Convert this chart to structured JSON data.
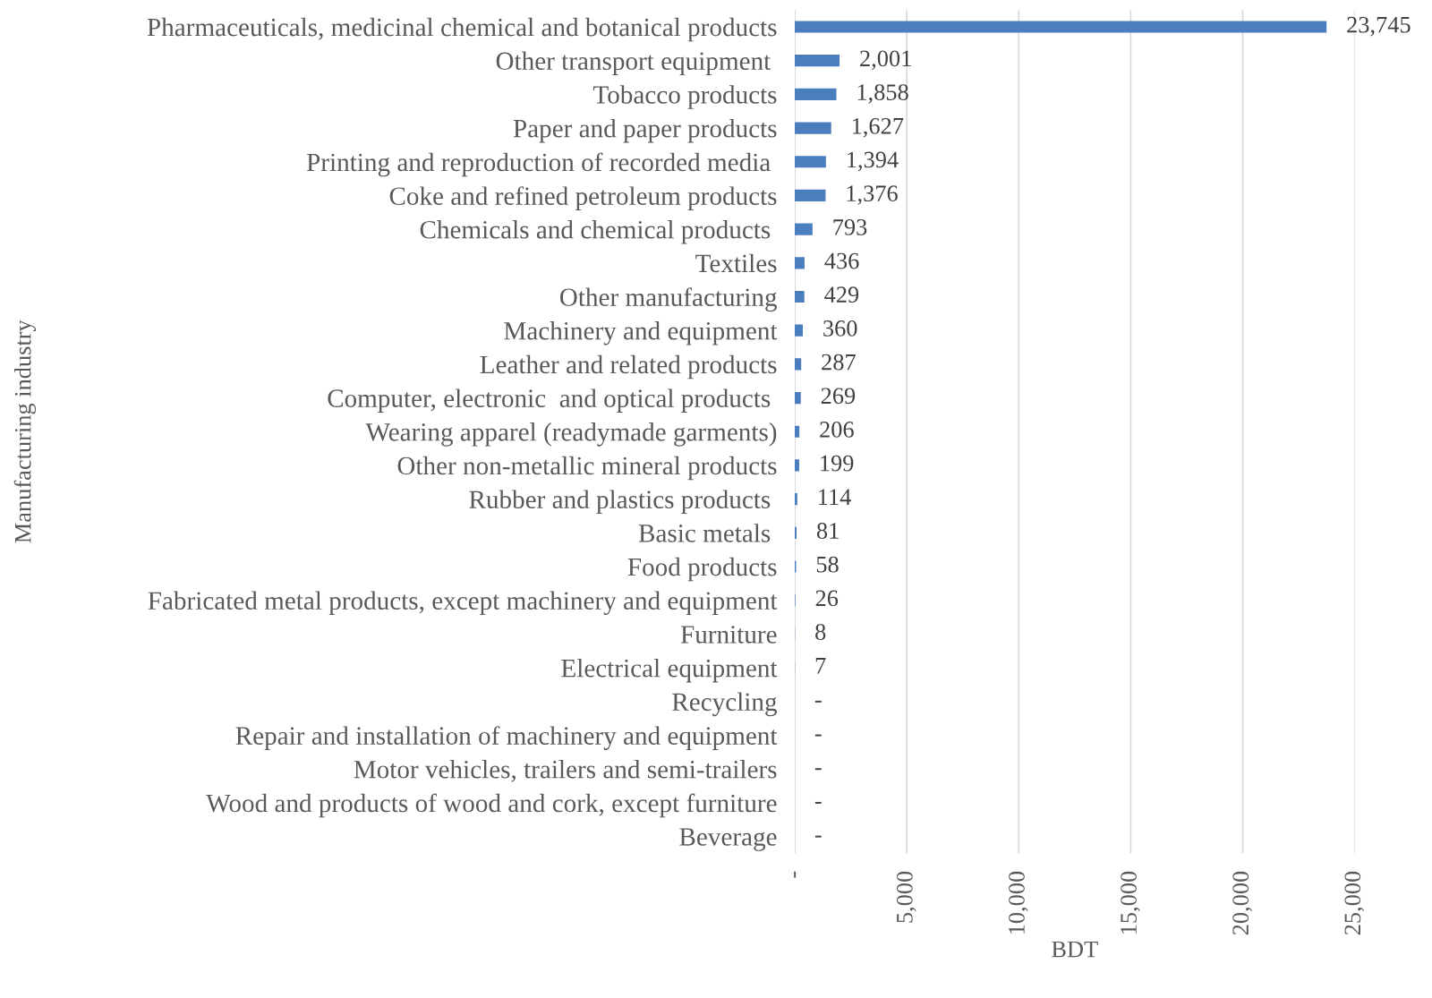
{
  "chart_data": {
    "type": "bar",
    "orientation": "horizontal",
    "xlabel": "BDT",
    "ylabel": "Manufacturing industry",
    "categories": [
      "Pharmaceuticals, medicinal chemical and botanical products",
      "Other transport equipment ",
      "Tobacco products",
      "Paper and paper products",
      "Printing and reproduction of recorded media ",
      "Coke and refined petroleum products",
      "Chemicals and chemical products ",
      "Textiles",
      "Other manufacturing",
      "Machinery and equipment",
      "Leather and related products",
      "Computer, electronic  and optical products ",
      "Wearing apparel (readymade garments)",
      "Other non-metallic mineral products",
      "Rubber and plastics products ",
      "Basic metals ",
      "Food products",
      "Fabricated metal products, except machinery and equipment",
      "Furniture",
      "Electrical equipment",
      "Recycling",
      "Repair and installation of machinery and equipment",
      "Motor vehicles, trailers and semi-trailers",
      "Wood and products of wood and cork, except furniture",
      "Beverage"
    ],
    "values": [
      23745,
      2001,
      1858,
      1627,
      1394,
      1376,
      793,
      436,
      429,
      360,
      287,
      269,
      206,
      199,
      114,
      81,
      58,
      26,
      8,
      7,
      0,
      0,
      0,
      0,
      0
    ],
    "value_labels": [
      "23,745",
      "2,001",
      "1,858",
      "1,627",
      "1,394",
      "1,376",
      "793",
      "436",
      "429",
      "360",
      "287",
      "269",
      "206",
      "199",
      "114",
      "81",
      "58",
      "26",
      "8",
      "7",
      "-",
      "-",
      "-",
      "-",
      "-"
    ],
    "color": "#4a7ebf",
    "xlim": [
      0,
      25000
    ],
    "xticks": [
      {
        "value": 0,
        "label": "-"
      },
      {
        "value": 5000,
        "label": "5,000"
      },
      {
        "value": 10000,
        "label": "10,000"
      },
      {
        "value": 15000,
        "label": "15,000"
      },
      {
        "value": 20000,
        "label": "20,000"
      },
      {
        "value": 25000,
        "label": "25,000"
      }
    ],
    "grid": "x",
    "legend": false
  }
}
